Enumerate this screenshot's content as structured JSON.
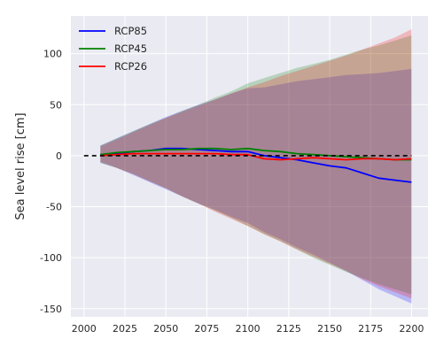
{
  "chart_data": {
    "type": "line",
    "title": "",
    "xlabel": "",
    "ylabel": "Sea level rise [cm]",
    "xlim": [
      1992,
      2210
    ],
    "ylim": [
      -158,
      137
    ],
    "xticks": [
      2000,
      2025,
      2050,
      2075,
      2100,
      2125,
      2150,
      2175,
      2200
    ],
    "yticks": [
      -150,
      -100,
      -50,
      0,
      50,
      100
    ],
    "grid": true,
    "legend_position": "top-left",
    "background": "#eaeaf2",
    "x": [
      2010,
      2020,
      2030,
      2040,
      2050,
      2060,
      2070,
      2080,
      2090,
      2100,
      2110,
      2120,
      2130,
      2140,
      2150,
      2160,
      2170,
      2180,
      2190,
      2200
    ],
    "series": [
      {
        "name": "RCP85",
        "color": "#0000ff",
        "values": [
          1,
          2,
          4,
          5,
          7,
          7,
          6,
          5,
          4,
          4,
          0,
          -2,
          -4,
          -7,
          -10,
          -12,
          -17,
          -22,
          -24,
          -26
        ],
        "upper": [
          10,
          17,
          24,
          31,
          38,
          44,
          50,
          55,
          61,
          66,
          67,
          70,
          73,
          75,
          77,
          79,
          80,
          81,
          83,
          85
        ],
        "lower": [
          -7,
          -12,
          -19,
          -26,
          -33,
          -40,
          -47,
          -53,
          -60,
          -66,
          -75,
          -82,
          -90,
          -97,
          -105,
          -113,
          -122,
          -131,
          -138,
          -145
        ]
      },
      {
        "name": "RCP45",
        "color": "#008000",
        "values": [
          1,
          3,
          4,
          5,
          6,
          6,
          7,
          7,
          6,
          7,
          5,
          4,
          2,
          1,
          0,
          -1,
          -2,
          -3,
          -4,
          -4
        ],
        "upper": [
          10,
          17,
          24,
          31,
          37,
          44,
          50,
          57,
          63,
          71,
          76,
          81,
          86,
          90,
          94,
          99,
          104,
          108,
          113,
          118
        ],
        "lower": [
          -7,
          -12,
          -18,
          -25,
          -32,
          -40,
          -47,
          -54,
          -61,
          -69,
          -77,
          -84,
          -92,
          -100,
          -107,
          -114,
          -120,
          -126,
          -131,
          -136
        ]
      },
      {
        "name": "RCP26",
        "color": "#ff0000",
        "values": [
          0,
          1,
          2,
          2,
          2,
          2,
          2,
          2,
          1,
          1,
          -3,
          -4,
          -3,
          -2,
          -3,
          -4,
          -3,
          -3,
          -4,
          -3
        ],
        "upper": [
          9,
          16,
          23,
          30,
          37,
          43,
          49,
          55,
          61,
          67,
          72,
          78,
          83,
          88,
          93,
          98,
          104,
          110,
          116,
          124
        ],
        "lower": [
          -6,
          -12,
          -18,
          -25,
          -32,
          -40,
          -47,
          -55,
          -62,
          -69,
          -77,
          -84,
          -92,
          -99,
          -106,
          -113,
          -121,
          -128,
          -134,
          -140
        ]
      }
    ],
    "reference_line": {
      "y": 0,
      "x_range": [
        2000,
        2200
      ],
      "color": "#000000",
      "style": "dashed"
    }
  }
}
